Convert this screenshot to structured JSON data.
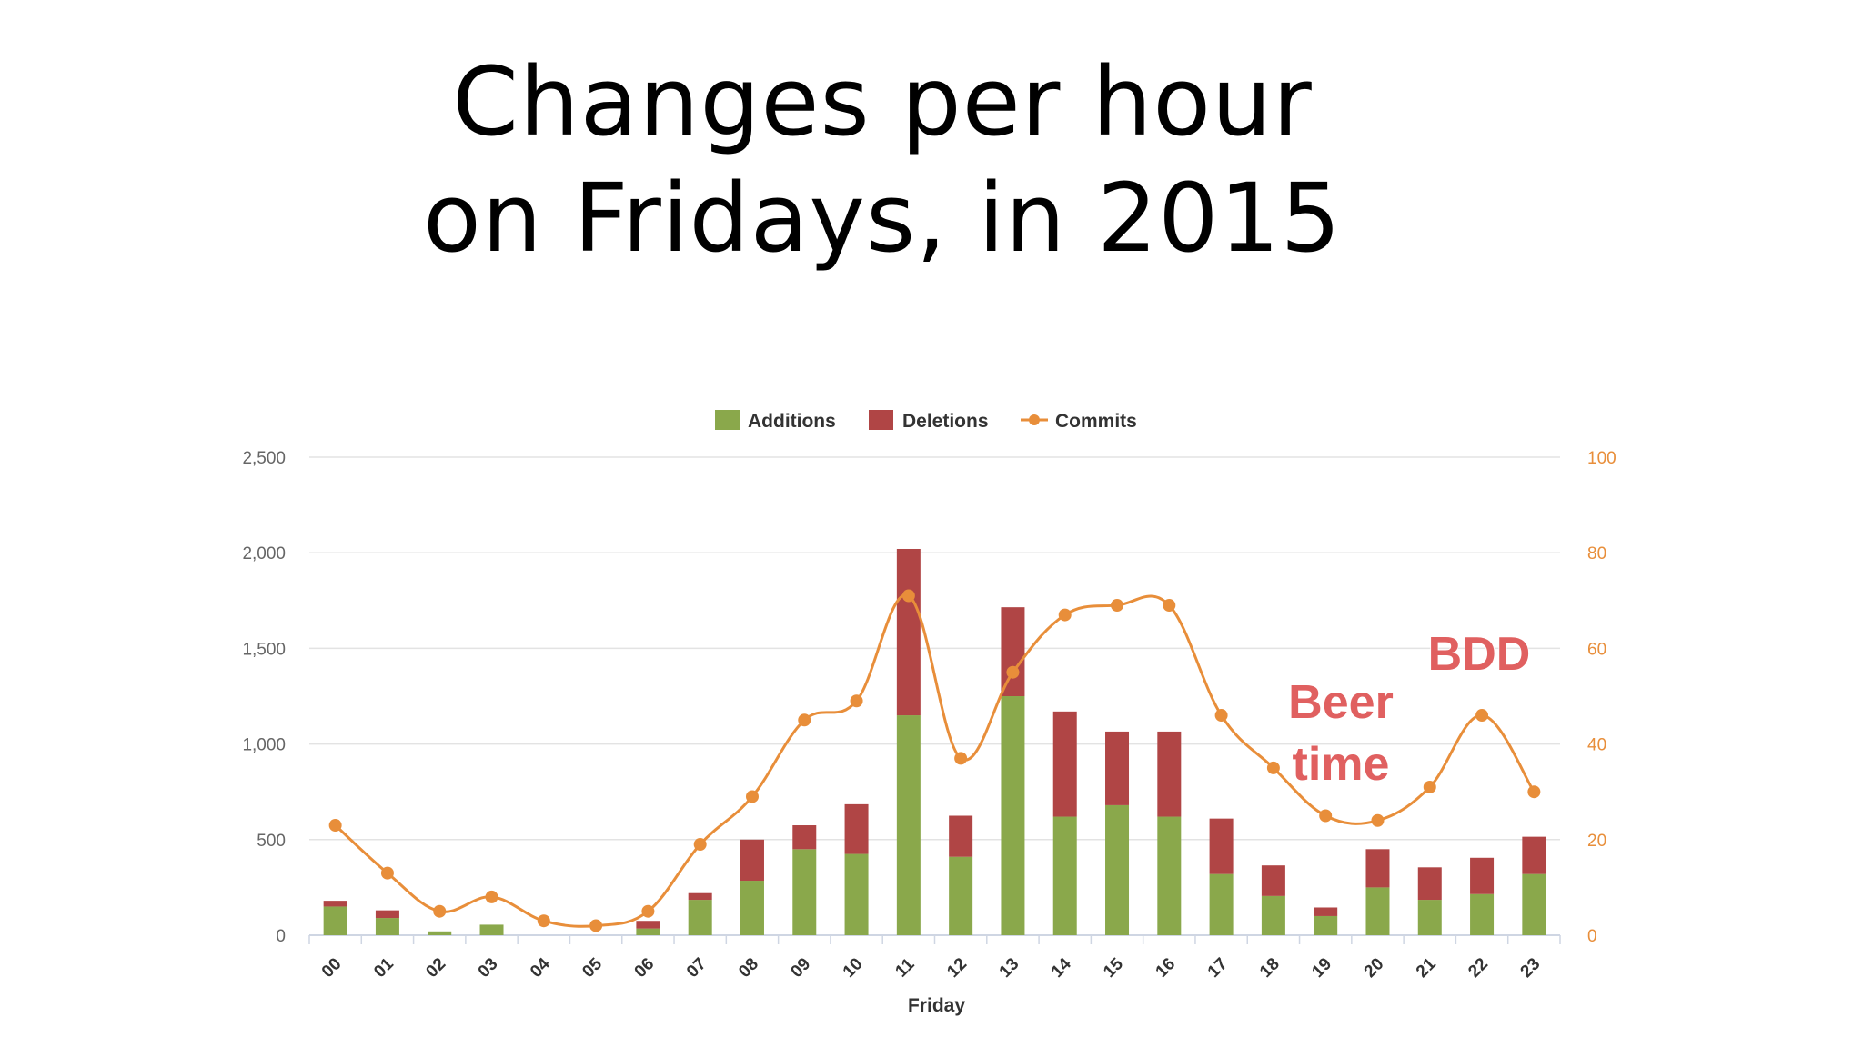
{
  "slide": {
    "title_line1": "Changes per hour",
    "title_line2": "on Fridays, in 2015"
  },
  "chart_data": {
    "type": "bar",
    "title": "",
    "xlabel": "Friday",
    "ylabel_left": "",
    "ylabel_right": "",
    "ylim_left": [
      0,
      2500
    ],
    "ylim_right": [
      0,
      100
    ],
    "y_ticks_left": [
      "0",
      "500",
      "1,000",
      "1,500",
      "2,000",
      "2,500"
    ],
    "y_ticks_right": [
      "0",
      "20",
      "40",
      "60",
      "80",
      "100"
    ],
    "grid": true,
    "legend_position": "top-center",
    "stacked": true,
    "categories": [
      "00",
      "01",
      "02",
      "03",
      "04",
      "05",
      "06",
      "07",
      "08",
      "09",
      "10",
      "11",
      "12",
      "13",
      "14",
      "15",
      "16",
      "17",
      "18",
      "19",
      "20",
      "21",
      "22",
      "23"
    ],
    "series": [
      {
        "name": "Additions",
        "kind": "bar",
        "axis": "left",
        "color": "#8aa84b",
        "values": [
          150,
          90,
          20,
          55,
          0,
          0,
          35,
          185,
          285,
          450,
          425,
          1150,
          410,
          1250,
          620,
          680,
          620,
          320,
          205,
          100,
          250,
          185,
          215,
          320
        ]
      },
      {
        "name": "Deletions",
        "kind": "bar",
        "axis": "left",
        "color": "#b04545",
        "values": [
          30,
          40,
          0,
          0,
          0,
          0,
          40,
          35,
          215,
          125,
          260,
          870,
          215,
          465,
          550,
          385,
          445,
          290,
          160,
          45,
          200,
          170,
          190,
          195
        ]
      },
      {
        "name": "Commits",
        "kind": "line",
        "axis": "right",
        "color": "#e88e3a",
        "values": [
          23,
          13,
          5,
          8,
          3,
          2,
          5,
          19,
          29,
          45,
          49,
          71,
          37,
          55,
          67,
          69,
          69,
          46,
          35,
          25,
          24,
          31,
          46,
          30
        ]
      }
    ],
    "annotations": [
      {
        "text": "Beer",
        "color": "#e06060"
      },
      {
        "text": "time",
        "color": "#e06060"
      },
      {
        "text": "BDD",
        "color": "#e06060"
      }
    ]
  }
}
